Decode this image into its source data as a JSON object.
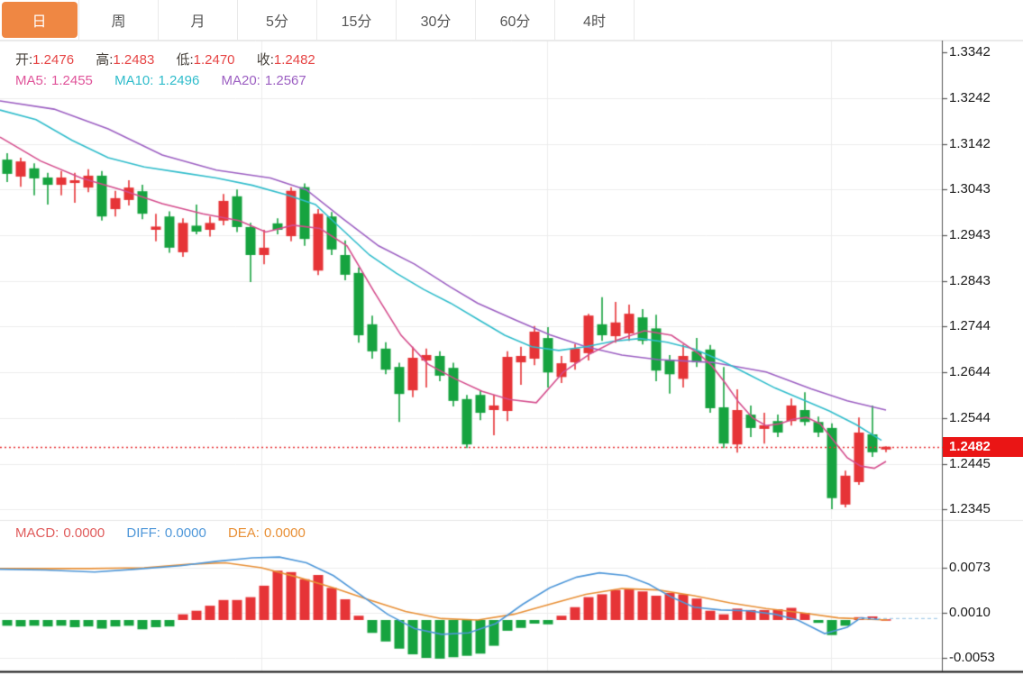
{
  "tabs": [
    {
      "label": "日",
      "active": true
    },
    {
      "label": "周",
      "active": false
    },
    {
      "label": "月",
      "active": false
    },
    {
      "label": "5分",
      "active": false
    },
    {
      "label": "15分",
      "active": false
    },
    {
      "label": "30分",
      "active": false
    },
    {
      "label": "60分",
      "active": false
    },
    {
      "label": "4时",
      "active": false
    }
  ],
  "legend": {
    "open_label": "开:",
    "open": "1.2476",
    "high_label": "高:",
    "high": "1.2483",
    "low_label": "低:",
    "low": "1.2470",
    "close_label": "收:",
    "close": "1.2482",
    "ma5_label": "MA5:",
    "ma5": "1.2455",
    "ma10_label": "MA10:",
    "ma10": "1.2496",
    "ma20_label": "MA20:",
    "ma20": "1.2567"
  },
  "macd_legend": {
    "macd_label": "MACD:",
    "macd": "0.0000",
    "diff_label": "DIFF:",
    "diff": "0.0000",
    "dea_label": "DEA:",
    "dea": "0.0000"
  },
  "axis": {
    "main_ticks": [
      "1.3342",
      "1.3242",
      "1.3142",
      "1.3043",
      "1.2943",
      "1.2843",
      "1.2744",
      "1.2644",
      "1.2544",
      "1.2445",
      "1.2345"
    ],
    "macd_ticks": [
      "0.0073",
      "0.0010",
      "-0.0053"
    ],
    "last_price": "1.2482"
  },
  "colors": {
    "up": "#e63437",
    "down": "#16a33f",
    "ma5": "#d44c8c",
    "ma10": "#2fbccb",
    "ma20": "#9c5fc2",
    "diff": "#4e97d9",
    "dea": "#e88f35",
    "diff_dash": "#a9cdea",
    "grid": "#ececec",
    "price_line": "#e63437",
    "badge_bg": "#ea1515",
    "tab_active_bg": "#ef8743",
    "axis_line": "#555555"
  },
  "chart_data": {
    "type": "candlestick",
    "interval": "日",
    "price_range": [
      1.2345,
      1.3342
    ],
    "macd_range": [
      -0.0053,
      0.0073
    ],
    "current_price": 1.2482,
    "candles_ohlc": [
      [
        1.3108,
        1.3122,
        1.3059,
        1.3077
      ],
      [
        1.3071,
        1.3112,
        1.3049,
        1.3104
      ],
      [
        1.3089,
        1.31,
        1.303,
        1.3067
      ],
      [
        1.3069,
        1.3079,
        1.301,
        1.3053
      ],
      [
        1.3053,
        1.3083,
        1.303,
        1.3069
      ],
      [
        1.3057,
        1.3079,
        1.3014,
        1.3063
      ],
      [
        1.3047,
        1.3087,
        1.3037,
        1.3073
      ],
      [
        1.3073,
        1.3083,
        1.2975,
        1.2984
      ],
      [
        1.3,
        1.304,
        1.2984,
        1.3024
      ],
      [
        1.302,
        1.3063,
        1.3008,
        1.3047
      ],
      [
        1.3039,
        1.3053,
        1.2978,
        1.299
      ],
      [
        1.2955,
        1.299,
        1.293,
        1.2962
      ],
      [
        1.2984,
        1.2995,
        1.2905,
        1.2916
      ],
      [
        1.2906,
        1.298,
        1.2896,
        1.297
      ],
      [
        1.2964,
        1.301,
        1.2945,
        1.2951
      ],
      [
        1.2955,
        1.2984,
        1.294,
        1.297
      ],
      [
        1.2975,
        1.3033,
        1.2965,
        1.3018
      ],
      [
        1.3028,
        1.3043,
        1.295,
        1.2961
      ],
      [
        1.2961,
        1.297,
        1.2841,
        1.29
      ],
      [
        1.29,
        1.2955,
        1.288,
        1.2916
      ],
      [
        1.2969,
        1.298,
        1.2945,
        1.2955
      ],
      [
        1.2941,
        1.3048,
        1.293,
        1.304
      ],
      [
        1.3048,
        1.3056,
        1.292,
        1.2935
      ],
      [
        1.2866,
        1.3,
        1.2856,
        1.299
      ],
      [
        1.2984,
        1.2994,
        1.29,
        1.2912
      ],
      [
        1.29,
        1.2932,
        1.2845,
        1.2857
      ],
      [
        1.2861,
        1.2873,
        1.2709,
        1.2725
      ],
      [
        1.2749,
        1.2768,
        1.2674,
        1.269
      ],
      [
        1.2696,
        1.271,
        1.264,
        1.265
      ],
      [
        1.2656,
        1.2665,
        1.2536,
        1.2597
      ],
      [
        1.2605,
        1.27,
        1.259,
        1.2676
      ],
      [
        1.267,
        1.2696,
        1.2611,
        1.2682
      ],
      [
        1.268,
        1.269,
        1.2625,
        1.2637
      ],
      [
        1.2654,
        1.2665,
        1.257,
        1.2582
      ],
      [
        1.2586,
        1.2595,
        1.2479,
        1.2487
      ],
      [
        1.2595,
        1.2605,
        1.254,
        1.2556
      ],
      [
        1.2562,
        1.2595,
        1.2507,
        1.2572
      ],
      [
        1.256,
        1.269,
        1.2538,
        1.2678
      ],
      [
        1.2666,
        1.27,
        1.2617,
        1.268
      ],
      [
        1.2674,
        1.2745,
        1.266,
        1.2733
      ],
      [
        1.2719,
        1.2743,
        1.2611,
        1.2644
      ],
      [
        1.2634,
        1.268,
        1.2621,
        1.2664
      ],
      [
        1.2666,
        1.2706,
        1.265,
        1.2696
      ],
      [
        1.2686,
        1.2772,
        1.267,
        1.2768
      ],
      [
        1.2749,
        1.2808,
        1.2713,
        1.2725
      ],
      [
        1.2723,
        1.2798,
        1.2709,
        1.2753
      ],
      [
        1.2729,
        1.2792,
        1.2713,
        1.2772
      ],
      [
        1.2764,
        1.2782,
        1.2705,
        1.2713
      ],
      [
        1.274,
        1.277,
        1.2625,
        1.2648
      ],
      [
        1.2672,
        1.2682,
        1.2598,
        1.264
      ],
      [
        1.263,
        1.2705,
        1.2611,
        1.268
      ],
      [
        1.269,
        1.2719,
        1.2656,
        1.2666
      ],
      [
        1.2694,
        1.2704,
        1.2556,
        1.2566
      ],
      [
        1.2568,
        1.2656,
        1.2479,
        1.2489
      ],
      [
        1.2487,
        1.2607,
        1.2469,
        1.2562
      ],
      [
        1.2552,
        1.2572,
        1.2503,
        1.2523
      ],
      [
        1.2521,
        1.2556,
        1.2489,
        1.2529
      ],
      [
        1.2538,
        1.2552,
        1.2503,
        1.2513
      ],
      [
        1.2538,
        1.2587,
        1.2528,
        1.2572
      ],
      [
        1.2562,
        1.2601,
        1.2528,
        1.2536
      ],
      [
        1.2536,
        1.2548,
        1.2503,
        1.2513
      ],
      [
        1.2523,
        1.2533,
        1.2346,
        1.237
      ],
      [
        1.2356,
        1.243,
        1.235,
        1.2419
      ],
      [
        1.2405,
        1.2546,
        1.2399,
        1.2513
      ],
      [
        1.2509,
        1.2572,
        1.246,
        1.247
      ],
      [
        1.2476,
        1.2483,
        1.247,
        1.2482
      ]
    ],
    "ma5_line": [
      [
        0,
        1.3157
      ],
      [
        45,
        1.3105
      ],
      [
        90,
        1.3068
      ],
      [
        135,
        1.3042
      ],
      [
        180,
        1.3012
      ],
      [
        225,
        1.299
      ],
      [
        265,
        1.2975
      ],
      [
        295,
        1.295
      ],
      [
        325,
        1.2965
      ],
      [
        355,
        1.2958
      ],
      [
        385,
        1.292
      ],
      [
        415,
        1.282
      ],
      [
        445,
        1.2725
      ],
      [
        475,
        1.2662
      ],
      [
        505,
        1.263
      ],
      [
        535,
        1.2603
      ],
      [
        565,
        1.2585
      ],
      [
        595,
        1.2578
      ],
      [
        625,
        1.2645
      ],
      [
        655,
        1.2685
      ],
      [
        685,
        1.2715
      ],
      [
        715,
        1.2735
      ],
      [
        745,
        1.2725
      ],
      [
        775,
        1.2685
      ],
      [
        790,
        1.2658
      ],
      [
        805,
        1.262
      ],
      [
        820,
        1.2578
      ],
      [
        835,
        1.2545
      ],
      [
        850,
        1.2528
      ],
      [
        865,
        1.2532
      ],
      [
        880,
        1.2542
      ],
      [
        895,
        1.2546
      ],
      [
        910,
        1.2532
      ],
      [
        925,
        1.2495
      ],
      [
        940,
        1.2458
      ],
      [
        955,
        1.244
      ],
      [
        970,
        1.2435
      ],
      [
        983,
        1.245
      ]
    ],
    "ma10_line": [
      [
        0,
        1.3216
      ],
      [
        40,
        1.3195
      ],
      [
        80,
        1.315
      ],
      [
        120,
        1.3112
      ],
      [
        160,
        1.3092
      ],
      [
        200,
        1.308
      ],
      [
        240,
        1.3068
      ],
      [
        280,
        1.3052
      ],
      [
        320,
        1.303
      ],
      [
        350,
        1.301
      ],
      [
        380,
        1.2955
      ],
      [
        410,
        1.29
      ],
      [
        440,
        1.286
      ],
      [
        470,
        1.2825
      ],
      [
        500,
        1.2795
      ],
      [
        530,
        1.276
      ],
      [
        560,
        1.2725
      ],
      [
        590,
        1.27
      ],
      [
        620,
        1.2692
      ],
      [
        650,
        1.27
      ],
      [
        680,
        1.2712
      ],
      [
        710,
        1.2718
      ],
      [
        740,
        1.271
      ],
      [
        770,
        1.2695
      ],
      [
        800,
        1.267
      ],
      [
        830,
        1.264
      ],
      [
        860,
        1.261
      ],
      [
        890,
        1.2585
      ],
      [
        920,
        1.256
      ],
      [
        950,
        1.253
      ],
      [
        978,
        1.2496
      ]
    ],
    "ma20_line": [
      [
        0,
        1.3236
      ],
      [
        60,
        1.3218
      ],
      [
        120,
        1.3175
      ],
      [
        180,
        1.3118
      ],
      [
        240,
        1.3085
      ],
      [
        300,
        1.3068
      ],
      [
        340,
        1.3042
      ],
      [
        380,
        1.298
      ],
      [
        420,
        1.292
      ],
      [
        460,
        1.288
      ],
      [
        500,
        1.283
      ],
      [
        530,
        1.2795
      ],
      [
        570,
        1.276
      ],
      [
        610,
        1.2726
      ],
      [
        650,
        1.27
      ],
      [
        690,
        1.2682
      ],
      [
        730,
        1.2672
      ],
      [
        790,
        1.2666
      ],
      [
        850,
        1.2645
      ],
      [
        900,
        1.2608
      ],
      [
        940,
        1.2582
      ],
      [
        983,
        1.2562
      ]
    ],
    "macd_hist": [
      -0.0008,
      -0.0009,
      -0.0008,
      -0.0009,
      -0.0008,
      -0.001,
      -0.0009,
      -0.0012,
      -0.0009,
      -0.0008,
      -0.0013,
      -0.001,
      -0.0009,
      0.0008,
      0.0013,
      0.002,
      0.0028,
      0.0028,
      0.0032,
      0.0048,
      0.0069,
      0.0067,
      0.0057,
      0.0063,
      0.0045,
      0.0029,
      0.0006,
      -0.0018,
      -0.003,
      -0.004,
      -0.0048,
      -0.0053,
      -0.0054,
      -0.0052,
      -0.005,
      -0.0047,
      -0.0036,
      -0.0015,
      -0.0011,
      -0.0005,
      -0.0006,
      0.0006,
      0.0018,
      0.0032,
      0.0036,
      0.0042,
      0.0044,
      0.004,
      0.0034,
      0.0038,
      0.0036,
      0.003,
      0.0013,
      0.0008,
      0.0016,
      0.0014,
      0.0014,
      0.0015,
      0.0017,
      0.001,
      -0.0004,
      -0.0021,
      -0.0008,
      0.0004,
      0.0005,
      0.0001
    ],
    "diff_line": [
      [
        0,
        0.0071
      ],
      [
        50,
        0.007
      ],
      [
        105,
        0.0067
      ],
      [
        150,
        0.0071
      ],
      [
        200,
        0.0076
      ],
      [
        240,
        0.0082
      ],
      [
        280,
        0.0087
      ],
      [
        310,
        0.0088
      ],
      [
        340,
        0.008
      ],
      [
        370,
        0.0062
      ],
      [
        400,
        0.0035
      ],
      [
        430,
        0.0008
      ],
      [
        460,
        -0.0012
      ],
      [
        490,
        -0.002
      ],
      [
        520,
        -0.0018
      ],
      [
        550,
        -0.0005
      ],
      [
        580,
        0.0022
      ],
      [
        610,
        0.0045
      ],
      [
        640,
        0.006
      ],
      [
        665,
        0.0066
      ],
      [
        695,
        0.0062
      ],
      [
        720,
        0.005
      ],
      [
        745,
        0.0032
      ],
      [
        770,
        0.0018
      ],
      [
        800,
        0.0014
      ],
      [
        830,
        0.0013
      ],
      [
        860,
        0.0008
      ],
      [
        885,
        0.0
      ],
      [
        915,
        -0.0019
      ],
      [
        940,
        -0.001
      ],
      [
        955,
        0.0003
      ],
      [
        975,
        0.0001
      ]
    ],
    "dea_line": [
      [
        0,
        0.0072
      ],
      [
        100,
        0.0072
      ],
      [
        160,
        0.0073
      ],
      [
        210,
        0.0078
      ],
      [
        250,
        0.008
      ],
      [
        290,
        0.0073
      ],
      [
        330,
        0.006
      ],
      [
        370,
        0.0045
      ],
      [
        410,
        0.0028
      ],
      [
        450,
        0.0012
      ],
      [
        490,
        0.0002
      ],
      [
        530,
        0.0
      ],
      [
        570,
        0.0008
      ],
      [
        610,
        0.0022
      ],
      [
        650,
        0.0036
      ],
      [
        690,
        0.0044
      ],
      [
        730,
        0.0042
      ],
      [
        770,
        0.0034
      ],
      [
        810,
        0.0024
      ],
      [
        850,
        0.0016
      ],
      [
        890,
        0.001
      ],
      [
        930,
        0.0003
      ],
      [
        985,
        0.0
      ]
    ]
  }
}
